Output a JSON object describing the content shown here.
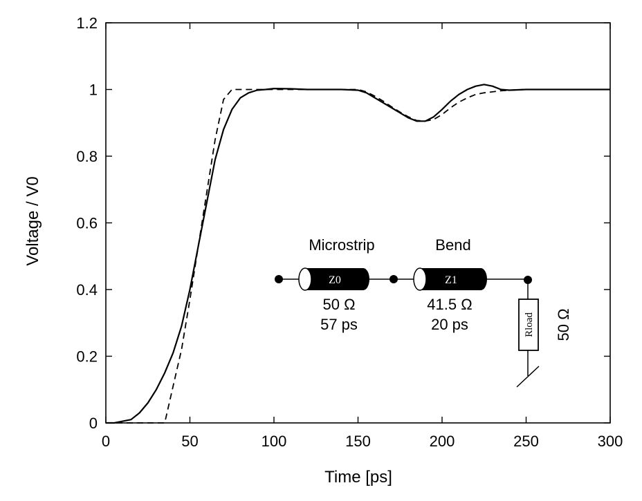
{
  "chart_data": {
    "type": "line",
    "title": "",
    "xlabel": "Time  [ps]",
    "ylabel": "Voltage / V0",
    "xlim": [
      0,
      300
    ],
    "ylim": [
      0,
      1.2
    ],
    "xticks": [
      0,
      50,
      100,
      150,
      200,
      250,
      300
    ],
    "yticks": [
      0,
      0.2,
      0.4,
      0.6,
      0.8,
      1,
      1.2
    ],
    "xtick_labels": [
      "0",
      "50",
      "100",
      "150",
      "200",
      "250",
      "300"
    ],
    "ytick_labels": [
      "0",
      "0.2",
      "0.4",
      "0.6",
      "0.8",
      "1",
      "1.2"
    ],
    "grid": false,
    "legend": "none",
    "series": [
      {
        "style": "solid",
        "x": [
          0,
          5,
          10,
          15,
          20,
          25,
          30,
          35,
          40,
          45,
          50,
          55,
          60,
          65,
          70,
          75,
          80,
          85,
          90,
          95,
          100,
          110,
          120,
          130,
          140,
          150,
          155,
          160,
          165,
          170,
          175,
          180,
          185,
          190,
          195,
          200,
          205,
          210,
          215,
          220,
          225,
          230,
          235,
          240,
          245,
          250,
          260,
          270,
          280,
          290,
          300
        ],
        "y": [
          0,
          0.0,
          0.005,
          0.01,
          0.03,
          0.06,
          0.1,
          0.15,
          0.21,
          0.29,
          0.4,
          0.53,
          0.66,
          0.79,
          0.88,
          0.94,
          0.975,
          0.99,
          0.998,
          1.0,
          1.003,
          1.002,
          1.0,
          1.0,
          1.0,
          0.998,
          0.99,
          0.975,
          0.96,
          0.945,
          0.93,
          0.915,
          0.905,
          0.905,
          0.918,
          0.94,
          0.965,
          0.985,
          1.0,
          1.01,
          1.015,
          1.01,
          1.0,
          0.998,
          0.999,
          1.0,
          1.0,
          1.0,
          1.0,
          1.0,
          1.0
        ]
      },
      {
        "style": "dashed",
        "x": [
          0,
          35,
          40,
          45,
          50,
          55,
          60,
          65,
          70,
          75,
          100,
          150,
          155,
          160,
          165,
          170,
          175,
          180,
          185,
          190,
          195,
          200,
          205,
          210,
          215,
          220,
          225,
          230,
          235,
          240,
          245,
          250,
          300
        ],
        "y": [
          0,
          0,
          0.11,
          0.22,
          0.37,
          0.53,
          0.69,
          0.85,
          0.97,
          1.0,
          1.0,
          1.0,
          0.993,
          0.98,
          0.965,
          0.948,
          0.932,
          0.918,
          0.907,
          0.905,
          0.91,
          0.925,
          0.945,
          0.962,
          0.975,
          0.985,
          0.99,
          0.993,
          0.996,
          0.998,
          0.999,
          1.0,
          1.0
        ]
      }
    ]
  },
  "inset": {
    "microstrip_label": "Microstrip",
    "bend_label": "Bend",
    "z0_label": "Z0",
    "z1_label": "Z1",
    "z0_impedance": "50 Ω",
    "z0_delay": "57 ps",
    "z1_impedance": "41.5 Ω",
    "z1_delay": "20 ps",
    "rload_label": "Rload",
    "rload_value": "50 Ω"
  }
}
